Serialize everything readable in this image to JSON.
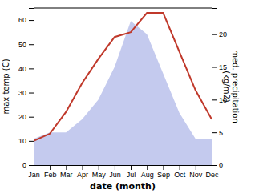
{
  "chart_data": {
    "type": "line",
    "categories": [
      "Jan",
      "Feb",
      "Mar",
      "Apr",
      "May",
      "Jun",
      "Jul",
      "Aug",
      "Sep",
      "Oct",
      "Nov",
      "Dec"
    ],
    "x_label": "date (month)",
    "y_label": "max temp (C)",
    "y2_label": "med. precipitation\n(kg/m2)",
    "ylim": [
      0,
      65
    ],
    "yticks": [
      0,
      10,
      20,
      30,
      40,
      50,
      60
    ],
    "y2lim": [
      0,
      24
    ],
    "y2ticks": [
      0,
      5,
      10,
      15,
      20
    ],
    "grid": false,
    "series": [
      {
        "type": "area",
        "axis": "y2",
        "color": "#b0b8e8",
        "values": [
          4,
          5,
          5,
          7,
          10,
          15,
          22,
          20,
          14,
          8,
          4,
          4
        ]
      },
      {
        "type": "line",
        "color": "#c0392b",
        "values": [
          10,
          13,
          22,
          34,
          44,
          53,
          55,
          63,
          63,
          47,
          31,
          19
        ]
      }
    ]
  }
}
